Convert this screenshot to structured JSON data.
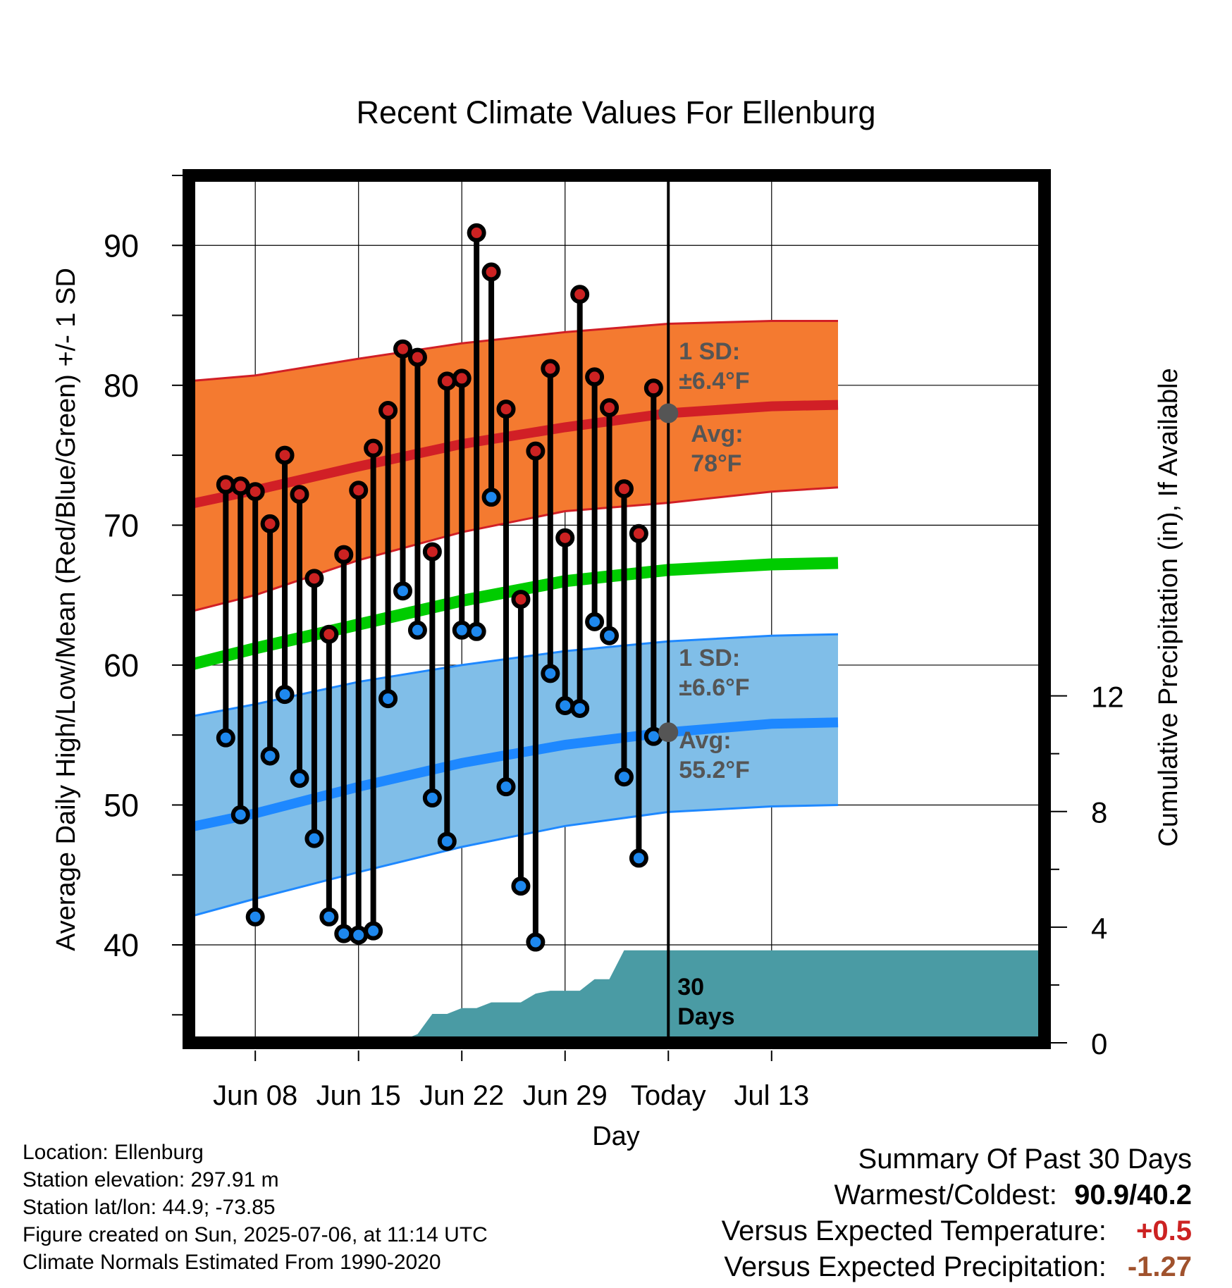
{
  "chart_data": {
    "type": "line",
    "title": "Recent Climate Values For Ellenburg",
    "xlabel": "Day",
    "ylabel_left": "Average Daily High/Low/Mean (Red/Blue/Green) +/- 1 SD",
    "ylabel_right": "Cumulative Precipitation (in), If Available",
    "ylim_left": [
      33,
      95
    ],
    "ylim_right": [
      0,
      30
    ],
    "xlim_day_index": [
      -4.5,
      53.5
    ],
    "x_ticks": [
      {
        "label": "Jun 08",
        "day_index": 0
      },
      {
        "label": "Jun 15",
        "day_index": 7
      },
      {
        "label": "Jun 22",
        "day_index": 14
      },
      {
        "label": "Jun 29",
        "day_index": 21
      },
      {
        "label": "Today",
        "day_index": 28
      },
      {
        "label": "Jul 13",
        "day_index": 35
      }
    ],
    "y_ticks_left": [
      40,
      50,
      60,
      70,
      80,
      90
    ],
    "y_ticks_right": [
      0,
      4,
      8,
      12
    ],
    "today_day_index": 28,
    "today_line_label": [
      "30",
      "Days"
    ],
    "normal_high": {
      "day_index": [
        -4.5,
        0,
        7,
        14,
        21,
        28,
        35,
        39.5
      ],
      "mean": [
        71.5,
        72.5,
        74.2,
        75.8,
        77.0,
        78.0,
        78.5,
        78.6
      ],
      "sd_low": [
        63.8,
        65.0,
        67.5,
        69.5,
        71.0,
        71.6,
        72.4,
        72.7
      ],
      "sd_high": [
        80.3,
        80.7,
        81.9,
        83.0,
        83.8,
        84.4,
        84.6,
        84.6
      ]
    },
    "normal_low": {
      "day_index": [
        -4.5,
        0,
        7,
        14,
        21,
        28,
        35,
        39.5
      ],
      "mean": [
        48.4,
        49.4,
        51.3,
        53.0,
        54.3,
        55.2,
        55.8,
        55.9
      ],
      "sd_low": [
        42.0,
        43.3,
        45.2,
        47.0,
        48.5,
        49.5,
        49.9,
        50.0
      ],
      "sd_high": [
        56.3,
        57.2,
        58.8,
        60.0,
        61.0,
        61.7,
        62.1,
        62.2
      ]
    },
    "normal_mean": {
      "day_index": [
        -4.5,
        0,
        7,
        14,
        21,
        28,
        35,
        39.5
      ],
      "values": [
        60.0,
        61.2,
        62.9,
        64.6,
        66.0,
        66.8,
        67.2,
        67.3
      ]
    },
    "daily": {
      "day_index": [
        -2,
        -1,
        0,
        1,
        2,
        3,
        4,
        5,
        6,
        7,
        8,
        9,
        10,
        11,
        12,
        13,
        14,
        15,
        16,
        17,
        18,
        19,
        20,
        21,
        22,
        23,
        24,
        25,
        26,
        27
      ],
      "high": [
        72.9,
        72.8,
        72.4,
        70.1,
        75.0,
        72.2,
        66.2,
        62.2,
        67.9,
        72.5,
        75.5,
        78.2,
        82.6,
        82.0,
        68.1,
        80.3,
        80.5,
        90.9,
        88.1,
        78.3,
        64.7,
        75.3,
        81.2,
        69.1,
        86.5,
        80.6,
        78.4,
        72.6,
        69.4,
        79.8
      ],
      "low": [
        54.8,
        49.3,
        42.0,
        53.5,
        57.9,
        51.9,
        47.6,
        42.0,
        40.8,
        40.7,
        41.0,
        57.6,
        65.3,
        62.5,
        50.5,
        47.4,
        62.5,
        62.4,
        72.0,
        51.3,
        44.2,
        40.2,
        59.4,
        57.1,
        56.9,
        63.1,
        62.1,
        52.0,
        46.2,
        54.9
      ]
    },
    "precip_cumulative": {
      "day_index": [
        -4.5,
        3,
        3.5,
        10,
        11,
        12,
        13,
        14,
        15,
        16,
        17,
        18,
        19,
        20,
        21,
        22,
        23,
        24,
        25,
        26,
        53.5
      ],
      "values": [
        0,
        0,
        0.1,
        0.1,
        0.3,
        1.0,
        1.0,
        1.2,
        1.2,
        1.4,
        1.4,
        1.4,
        1.7,
        1.8,
        1.8,
        1.8,
        2.2,
        2.2,
        3.2,
        3.2,
        3.2
      ]
    },
    "high_sd_annotation": [
      "1 SD:",
      "±6.4°F"
    ],
    "high_avg_annotation": [
      "Avg:",
      "78°F"
    ],
    "low_sd_annotation": [
      "1 SD:",
      "±6.6°F"
    ],
    "low_avg_annotation": [
      "Avg:",
      "55.2°F"
    ],
    "today_normal_high": 78.0,
    "today_normal_low": 55.2,
    "colors": {
      "high_band": "#f47a30",
      "high_mean": "#d11f26",
      "low_band": "#80bee8",
      "low_mean": "#1e88ff",
      "mean_line": "#00cc00",
      "precip": "#4a9ba4",
      "high_dot": "#cc2222",
      "low_dot": "#1e88ee",
      "annotation": "#555555"
    }
  },
  "footer": {
    "location": "Location: Ellenburg",
    "elevation": "Station elevation: 297.91 m",
    "latlon": "Station lat/lon: 44.9; -73.85",
    "created": "Figure created on Sun, 2025-07-06, at 11:14 UTC",
    "normals": "Climate Normals Estimated From 1990-2020"
  },
  "summary": {
    "title": "Summary Of Past 30 Days",
    "warm_cold_label": "Warmest/Coldest:",
    "warm_cold_value": "90.9/40.2",
    "temp_label": "Versus Expected Temperature:",
    "temp_value": "+0.5",
    "temp_color": "#cc2222",
    "precip_label": "Versus Expected Precipitation:",
    "precip_value": "-1.27",
    "precip_color": "#a0522d"
  }
}
